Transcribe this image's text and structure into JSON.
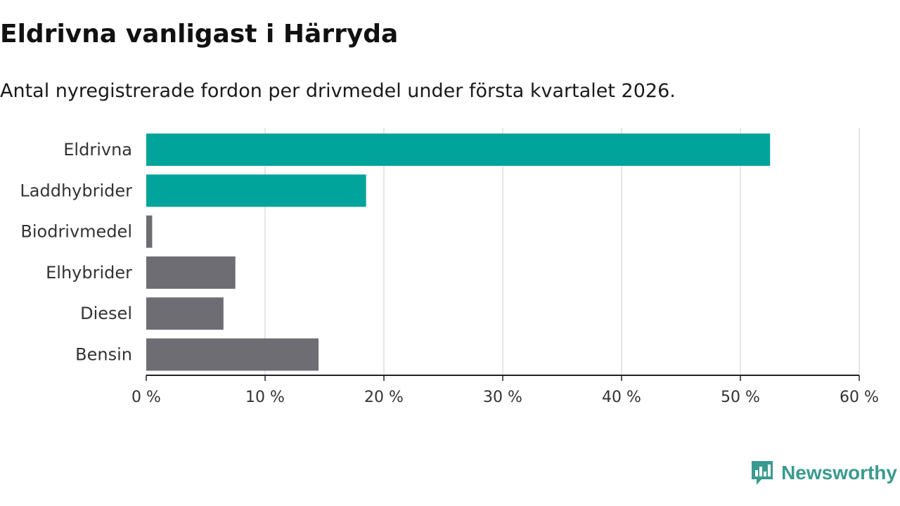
{
  "header": {
    "title": "Eldrivna vanligast i Härryda",
    "subtitle": "Antal nyregistrerade fordon per drivmedel under första kvartalet 2026."
  },
  "chart_data": {
    "type": "bar",
    "orientation": "horizontal",
    "title": "Eldrivna vanligast i Härryda",
    "subtitle": "Antal nyregistrerade fordon per drivmedel under första kvartalet 2026.",
    "categories": [
      "Eldrivna",
      "Laddhybrider",
      "Biodrivmedel",
      "Elhybrider",
      "Diesel",
      "Bensin"
    ],
    "values": [
      52.5,
      18.5,
      0.5,
      7.5,
      6.5,
      14.5
    ],
    "highlight": [
      true,
      true,
      false,
      false,
      false,
      false
    ],
    "xlim": [
      0,
      60
    ],
    "xticks": [
      0,
      10,
      20,
      30,
      40,
      50,
      60
    ],
    "tick_suffix": " %",
    "xlabel": "",
    "ylabel": "",
    "grid": true,
    "colors": {
      "highlight": "#00a49a",
      "default": "#6e6d74",
      "grid": "#dddddd",
      "axis": "#222222"
    }
  },
  "brand": {
    "name": "Newsworthy",
    "icon": "newsworthy-logo-icon",
    "color": "#3a9a8f"
  }
}
